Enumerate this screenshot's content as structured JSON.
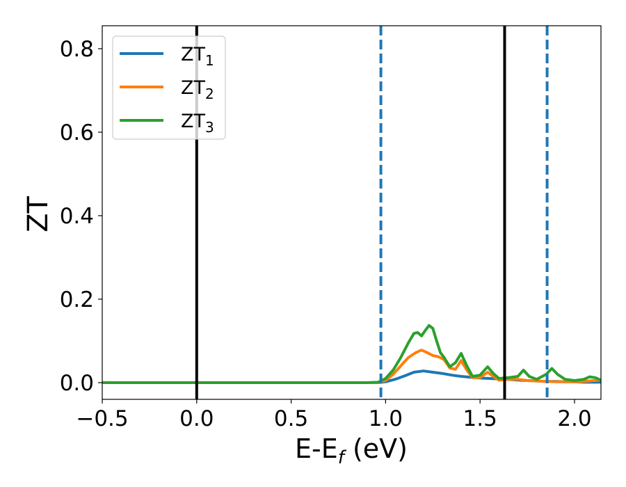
{
  "chart_data": {
    "type": "line",
    "xlabel": "E-E",
    "xlabel_sub": "f",
    "xlabel_unit": " (eV)",
    "ylabel": "ZT",
    "xlim": [
      -0.5,
      2.14
    ],
    "ylim": [
      -0.04,
      0.855
    ],
    "xticks": [
      -0.5,
      0.0,
      0.5,
      1.0,
      1.5,
      2.0
    ],
    "xtick_labels": [
      "−0.5",
      "0.0",
      "0.5",
      "1.0",
      "1.5",
      "2.0"
    ],
    "yticks": [
      0.0,
      0.2,
      0.4,
      0.6,
      0.8
    ],
    "ytick_labels": [
      "0.0",
      "0.2",
      "0.4",
      "0.6",
      "0.8"
    ],
    "grid": false,
    "legend_position": "top-left",
    "vlines": [
      {
        "x": 0.0,
        "style": "solid",
        "color": "#000000"
      },
      {
        "x": 1.63,
        "style": "solid",
        "color": "#000000"
      },
      {
        "x": 0.975,
        "style": "dashed",
        "color": "#1f77b4"
      },
      {
        "x": 1.855,
        "style": "dashed",
        "color": "#1f77b4"
      }
    ],
    "series": [
      {
        "name": "ZT",
        "subscript": "1",
        "color": "#1f77b4",
        "x": [
          -0.5,
          0.9,
          0.96,
          1.0,
          1.05,
          1.1,
          1.15,
          1.2,
          1.25,
          1.3,
          1.35,
          1.4,
          1.45,
          1.5,
          1.55,
          1.6,
          1.65,
          1.7,
          1.75,
          1.8,
          1.85,
          1.9,
          1.95,
          2.0,
          2.05,
          2.1,
          2.14
        ],
        "y": [
          0.0,
          0.0,
          0.0,
          0.002,
          0.008,
          0.016,
          0.025,
          0.028,
          0.025,
          0.022,
          0.018,
          0.015,
          0.013,
          0.011,
          0.01,
          0.009,
          0.008,
          0.006,
          0.005,
          0.004,
          0.003,
          0.003,
          0.002,
          0.002,
          0.001,
          0.001,
          0.001
        ]
      },
      {
        "name": "ZT",
        "subscript": "2",
        "color": "#ff7f0e",
        "x": [
          -0.5,
          0.9,
          0.96,
          1.0,
          1.04,
          1.08,
          1.12,
          1.16,
          1.19,
          1.22,
          1.25,
          1.28,
          1.31,
          1.34,
          1.37,
          1.4,
          1.43,
          1.46,
          1.5,
          1.54,
          1.57,
          1.6,
          1.65,
          1.7,
          1.75,
          1.8,
          1.85,
          1.9,
          1.95,
          2.0,
          2.05,
          2.1,
          2.14
        ],
        "y": [
          0.0,
          0.0,
          0.0,
          0.005,
          0.02,
          0.04,
          0.06,
          0.072,
          0.078,
          0.072,
          0.065,
          0.062,
          0.055,
          0.035,
          0.032,
          0.053,
          0.03,
          0.012,
          0.012,
          0.025,
          0.015,
          0.006,
          0.008,
          0.008,
          0.005,
          0.004,
          0.003,
          0.002,
          0.002,
          0.002,
          0.003,
          0.005,
          0.006
        ]
      },
      {
        "name": "ZT",
        "subscript": "3",
        "color": "#2ca02c",
        "x": [
          -0.5,
          0.9,
          0.96,
          1.0,
          1.04,
          1.08,
          1.12,
          1.15,
          1.17,
          1.19,
          1.21,
          1.23,
          1.25,
          1.27,
          1.29,
          1.31,
          1.34,
          1.37,
          1.4,
          1.43,
          1.46,
          1.5,
          1.54,
          1.57,
          1.6,
          1.65,
          1.7,
          1.73,
          1.76,
          1.8,
          1.85,
          1.88,
          1.91,
          1.95,
          2.0,
          2.05,
          2.08,
          2.11,
          2.14
        ],
        "y": [
          0.0,
          0.0,
          0.001,
          0.01,
          0.03,
          0.06,
          0.095,
          0.118,
          0.12,
          0.112,
          0.125,
          0.137,
          0.13,
          0.1,
          0.072,
          0.06,
          0.038,
          0.048,
          0.07,
          0.04,
          0.015,
          0.018,
          0.038,
          0.022,
          0.01,
          0.012,
          0.015,
          0.03,
          0.015,
          0.008,
          0.02,
          0.034,
          0.02,
          0.008,
          0.005,
          0.008,
          0.014,
          0.012,
          0.006
        ]
      }
    ]
  }
}
